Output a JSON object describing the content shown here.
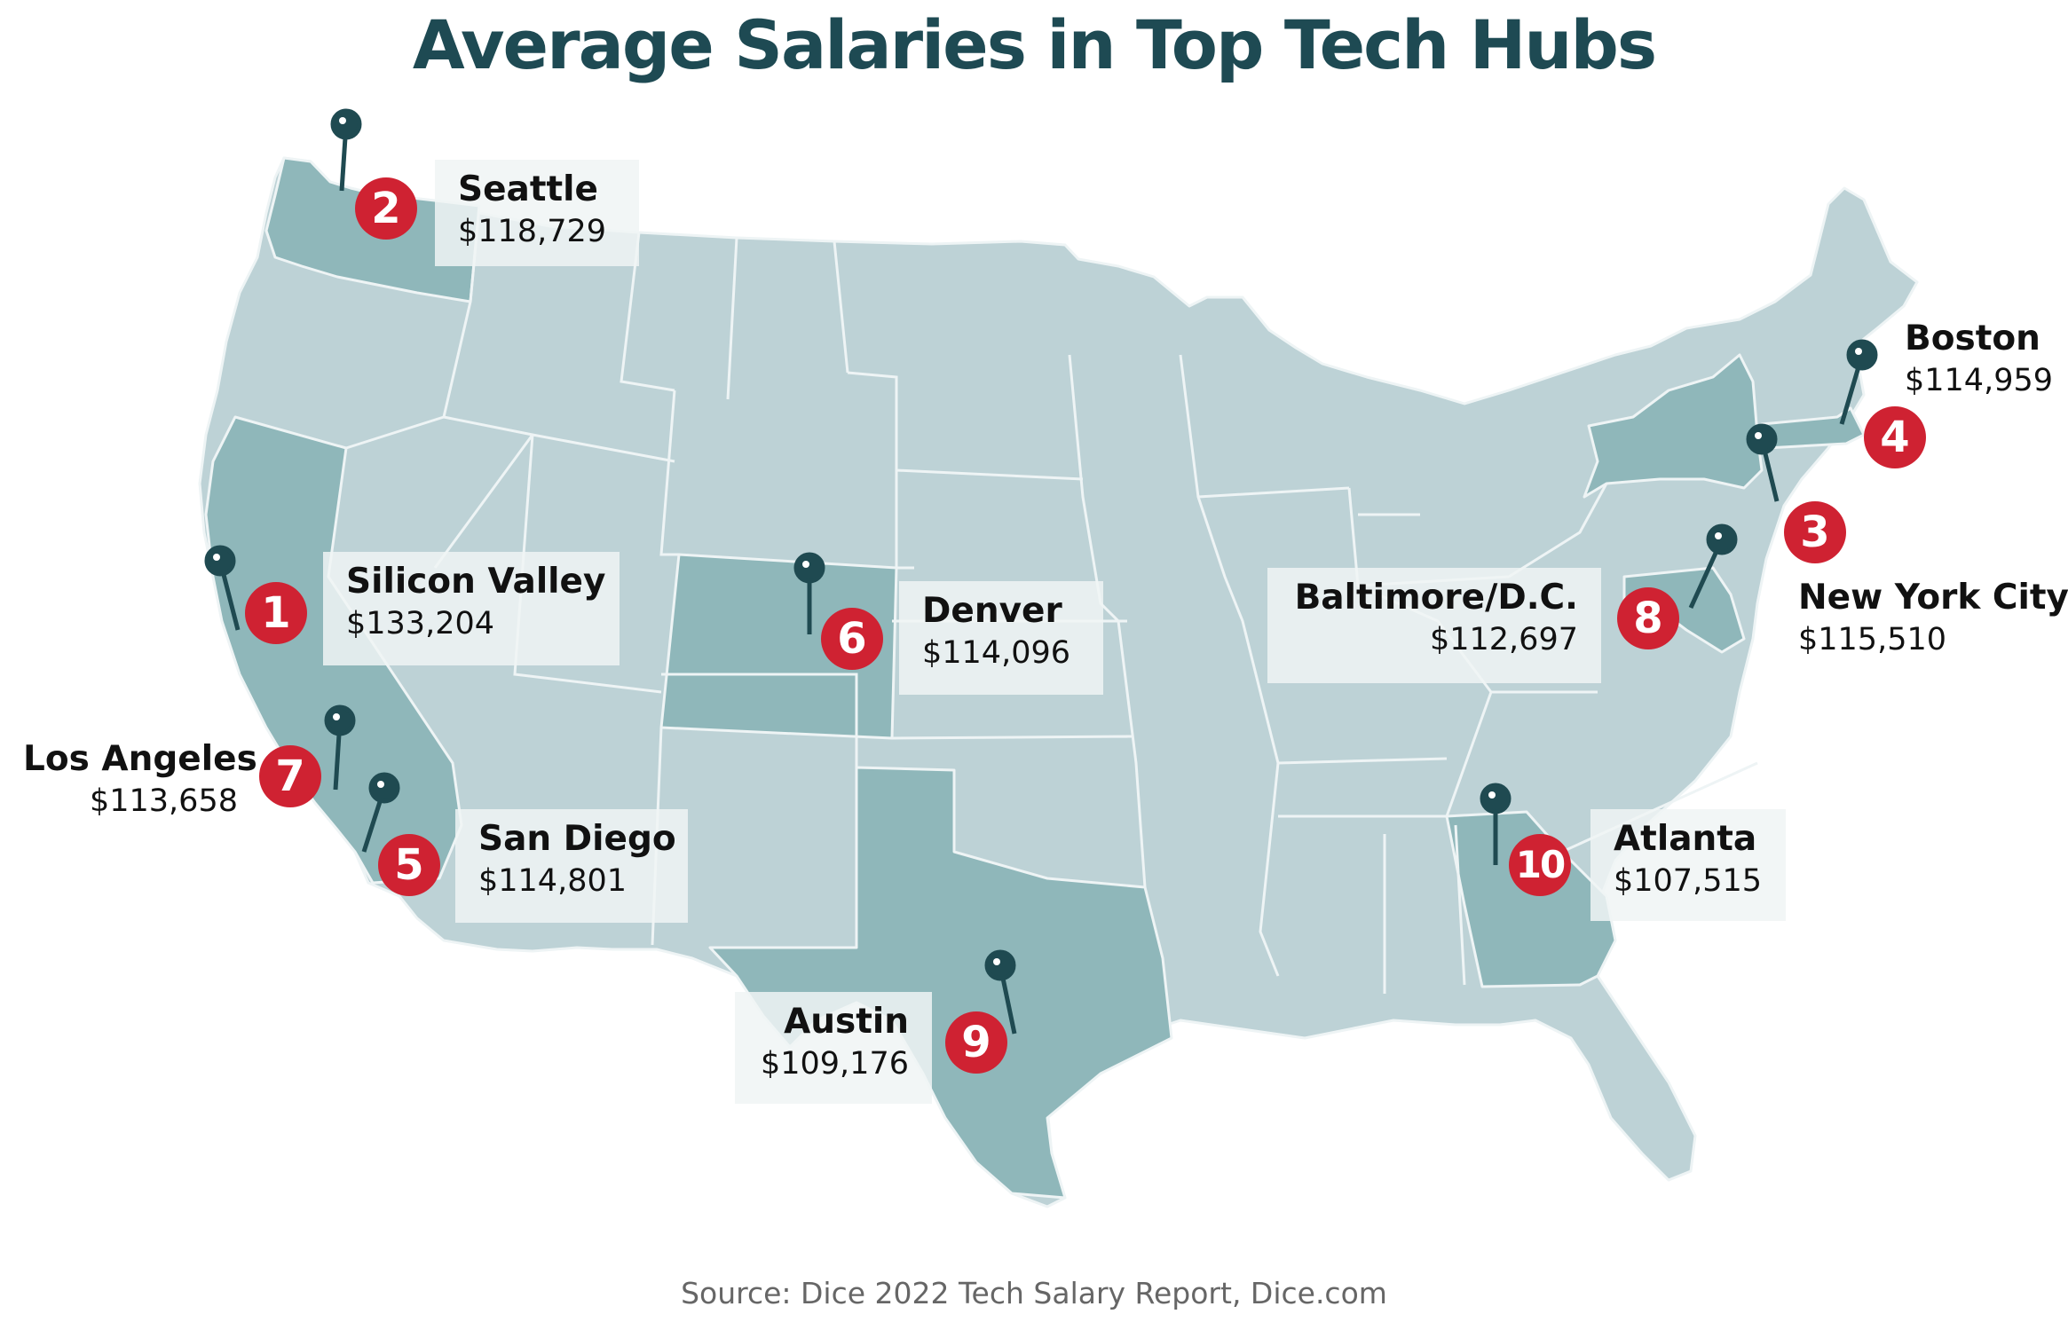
{
  "title": "Average Salaries in Top Tech Hubs",
  "source": "Source: Dice 2022 Tech Salary Report, Dice.com",
  "colors": {
    "title": "#1e4a53",
    "land": "#bdd2d6",
    "highlight": "#8fb7ba",
    "border": "#eef4f5",
    "badge": "#cf2232",
    "pin": "#1f4a51"
  },
  "hubs": [
    {
      "rank": "1",
      "city": "Silicon Valley",
      "salary": "$133,204"
    },
    {
      "rank": "2",
      "city": "Seattle",
      "salary": "$118,729"
    },
    {
      "rank": "3",
      "city": "New York City",
      "salary": "$115,510"
    },
    {
      "rank": "4",
      "city": "Boston",
      "salary": "$114,959"
    },
    {
      "rank": "5",
      "city": "San Diego",
      "salary": "$114,801"
    },
    {
      "rank": "6",
      "city": "Denver",
      "salary": "$114,096"
    },
    {
      "rank": "7",
      "city": "Los Angeles",
      "salary": "$113,658"
    },
    {
      "rank": "8",
      "city": "Baltimore/D.C.",
      "salary": "$112,697"
    },
    {
      "rank": "9",
      "city": "Austin",
      "salary": "$109,176"
    },
    {
      "rank": "10",
      "city": "Atlanta",
      "salary": "$107,515"
    }
  ]
}
